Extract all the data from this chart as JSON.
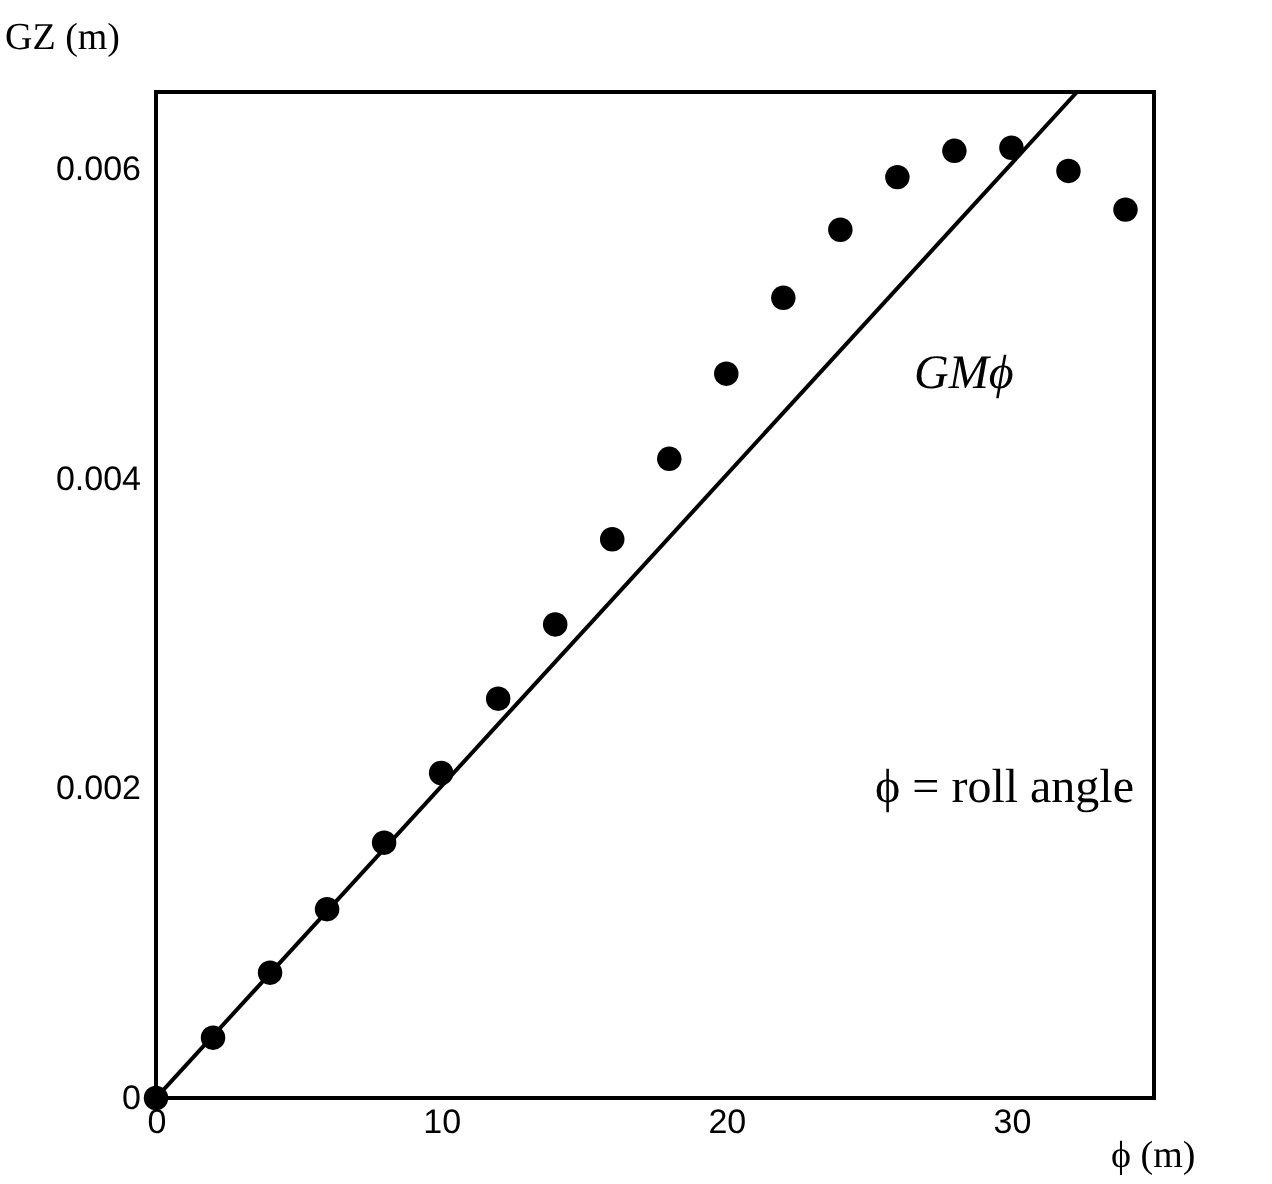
{
  "chart_data": {
    "type": "scatter",
    "xlabel": "ϕ (m)",
    "ylabel": "GZ (m)",
    "xlim": [
      0,
      35
    ],
    "xticks": [
      0,
      10,
      20,
      30
    ],
    "ylim": [
      0,
      0.0065
    ],
    "yticks": [
      0,
      0.002,
      0.004,
      0.006
    ],
    "grid": false,
    "series": [
      {
        "color": "#000000",
        "marker": "circle",
        "x": [
          0,
          2,
          4,
          6,
          8,
          10,
          12,
          14,
          16,
          18,
          20,
          22,
          24,
          26,
          28,
          30,
          32,
          34
        ],
        "values": [
          0,
          0.00039,
          0.00081,
          0.00122,
          0.00165,
          0.0021,
          0.00258,
          0.00306,
          0.00361,
          0.00413,
          0.00468,
          0.00517,
          0.00561,
          0.00595,
          0.00612,
          0.00614,
          0.00599,
          0.00574
        ]
      },
      {
        "type": "line",
        "color": "#000000",
        "line_style": "solid",
        "x": [
          0,
          32.3
        ],
        "values": [
          0,
          0.0065
        ]
      }
    ],
    "annotations": [
      "GMϕ",
      "ϕ = roll angle"
    ]
  }
}
